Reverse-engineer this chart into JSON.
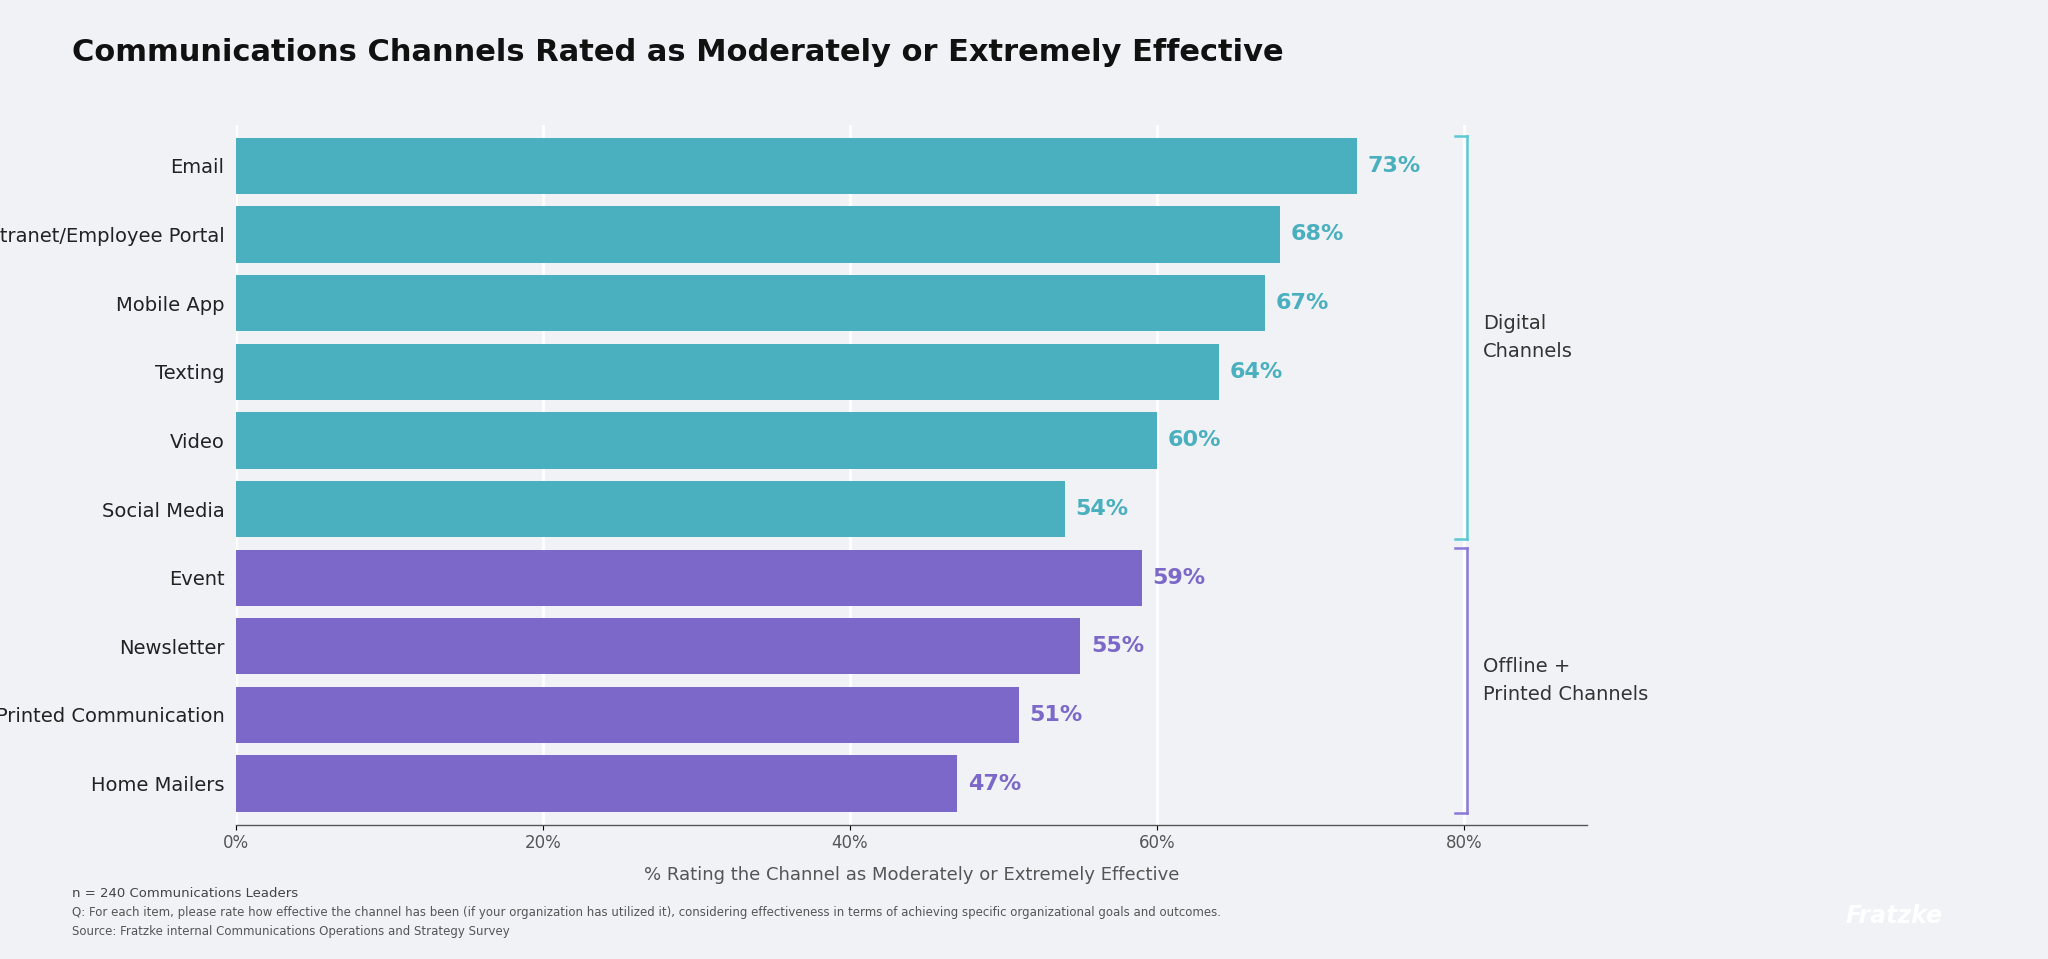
{
  "title": "Communications Channels Rated as Moderately or Extremely Effective",
  "categories": [
    "Email",
    "Intranet/Employee Portal",
    "Mobile App",
    "Texting",
    "Video",
    "Social Media",
    "Event",
    "Newsletter",
    "Printed Communication",
    "Home Mailers"
  ],
  "values": [
    73,
    68,
    67,
    64,
    60,
    54,
    59,
    55,
    51,
    47
  ],
  "bar_colors": [
    "#4aafbe",
    "#4aafbe",
    "#4aafbe",
    "#4aafbe",
    "#4aafbe",
    "#4aafbe",
    "#7b68c8",
    "#7b68c8",
    "#7b68c8",
    "#7b68c8"
  ],
  "value_colors": [
    "#4aafbe",
    "#4aafbe",
    "#4aafbe",
    "#4aafbe",
    "#4aafbe",
    "#4aafbe",
    "#7b68c8",
    "#7b68c8",
    "#7b68c8",
    "#7b68c8"
  ],
  "xlim": [
    0,
    88
  ],
  "xlabel": "% Rating the Channel as Moderately or Extremely Effective",
  "xticks": [
    0,
    20,
    40,
    60,
    80
  ],
  "xtick_labels": [
    "0%",
    "20%",
    "40%",
    "60%",
    "80%"
  ],
  "background_color": "#f0f2f6",
  "title_fontsize": 22,
  "label_fontsize": 14,
  "value_fontsize": 16,
  "xlabel_fontsize": 13,
  "bracket_color_digital": "#5bc8d4",
  "bracket_color_offline": "#8b78d8",
  "digital_label": "Digital\nChannels",
  "offline_label": "Offline +\nPrinted Channels",
  "footer_line1": "n = 240 Communications Leaders",
  "footer_line2": "Q: For each item, please rate how effective the channel has been (if your organization has utilized it), considering effectiveness in terms of achieving specific organizational goals and outcomes.",
  "footer_line3": "Source: Fratzke internal Communications Operations and Strategy Survey",
  "fratzke_text": "Fratzke",
  "fratzke_bg": "#3b3f8c",
  "fratzke_text_color": "#ffffff"
}
